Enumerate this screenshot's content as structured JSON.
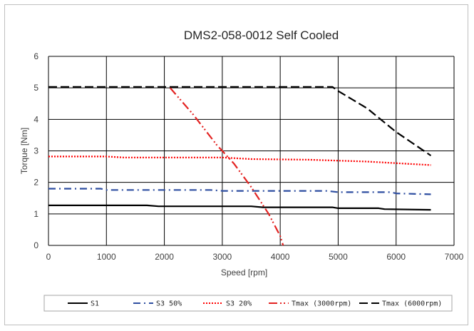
{
  "chart_data": {
    "type": "line",
    "title": "DMS2-058-0012 Self Cooled",
    "xlabel": "Speed [rpm]",
    "ylabel": "Torque [Nm]",
    "xlim": [
      0,
      7000
    ],
    "ylim": [
      0,
      6
    ],
    "xticks": [
      0,
      1000,
      2000,
      3000,
      4000,
      5000,
      6000,
      7000
    ],
    "yticks": [
      0,
      1,
      2,
      3,
      4,
      5,
      6
    ],
    "grid": true,
    "legend_position": "bottom",
    "series": [
      {
        "name": "S1",
        "color": "#000000",
        "dash": "solid",
        "points": [
          [
            0,
            1.27
          ],
          [
            1700,
            1.27
          ],
          [
            1900,
            1.24
          ],
          [
            3500,
            1.24
          ],
          [
            3700,
            1.21
          ],
          [
            4900,
            1.21
          ],
          [
            5000,
            1.18
          ],
          [
            5700,
            1.18
          ],
          [
            5800,
            1.15
          ],
          [
            6600,
            1.13
          ]
        ]
      },
      {
        "name": "S3 50%",
        "color": "#2e4ea1",
        "dash": "dashdot",
        "points": [
          [
            0,
            1.8
          ],
          [
            900,
            1.8
          ],
          [
            1000,
            1.76
          ],
          [
            2800,
            1.76
          ],
          [
            3000,
            1.73
          ],
          [
            4800,
            1.73
          ],
          [
            5000,
            1.69
          ],
          [
            5900,
            1.69
          ],
          [
            6000,
            1.65
          ],
          [
            6600,
            1.62
          ]
        ]
      },
      {
        "name": "S3 20%",
        "color": "#ff0000",
        "dash": "dotted",
        "points": [
          [
            0,
            2.82
          ],
          [
            1000,
            2.82
          ],
          [
            1300,
            2.79
          ],
          [
            3000,
            2.79
          ],
          [
            3500,
            2.74
          ],
          [
            4500,
            2.72
          ],
          [
            5500,
            2.66
          ],
          [
            6600,
            2.55
          ]
        ]
      },
      {
        "name": "Tmax (3000rpm)",
        "color": "#e32322",
        "dash": "dashdotdot",
        "points": [
          [
            2100,
            5.0
          ],
          [
            2500,
            4.15
          ],
          [
            2900,
            3.2
          ],
          [
            3200,
            2.6
          ],
          [
            3500,
            1.85
          ],
          [
            3800,
            1.0
          ],
          [
            4000,
            0.3
          ],
          [
            4050,
            0.0
          ]
        ]
      },
      {
        "name": "Tmax (6000rpm)",
        "color": "#000000",
        "dash": "longdash",
        "points": [
          [
            0,
            5.03
          ],
          [
            4900,
            5.03
          ],
          [
            5000,
            4.9
          ],
          [
            5500,
            4.35
          ],
          [
            6000,
            3.6
          ],
          [
            6600,
            2.85
          ]
        ]
      }
    ]
  }
}
